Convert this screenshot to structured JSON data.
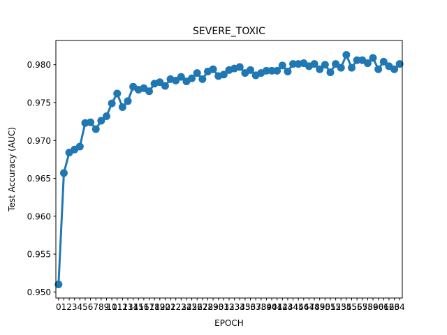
{
  "chart_data": {
    "type": "line",
    "title": "SEVERE_TOXIC",
    "xlabel": "EPOCH",
    "ylabel": "Test Accuracy (AUC)",
    "ylim": [
      0.9492,
      0.9832
    ],
    "yticks": [
      0.95,
      0.955,
      0.96,
      0.965,
      0.97,
      0.975,
      0.98
    ],
    "ytick_labels": [
      "0.950",
      "0.955",
      "0.960",
      "0.965",
      "0.970",
      "0.975",
      "0.980"
    ],
    "grid": false,
    "color": "#1f77b4",
    "series": [
      {
        "x": [
          0,
          1,
          2,
          3,
          4,
          5,
          6,
          7,
          8,
          9,
          10,
          11,
          12,
          13,
          14,
          15,
          16,
          17,
          18,
          19,
          20,
          21,
          22,
          23,
          24,
          25,
          26,
          27,
          28,
          29,
          30,
          31,
          32,
          33,
          34,
          35,
          36,
          37,
          38,
          39,
          40,
          41,
          42,
          43,
          44,
          45,
          46,
          47,
          48,
          49,
          50,
          51,
          52,
          53,
          54,
          55,
          56,
          57,
          58,
          59,
          60,
          61,
          62,
          63,
          64
        ],
        "values": [
          0.951,
          0.9657,
          0.9684,
          0.9688,
          0.9692,
          0.9723,
          0.9724,
          0.9715,
          0.9726,
          0.9732,
          0.9749,
          0.9762,
          0.9744,
          0.9752,
          0.9771,
          0.9767,
          0.9769,
          0.9765,
          0.9775,
          0.9777,
          0.9772,
          0.9781,
          0.9779,
          0.9784,
          0.9778,
          0.9782,
          0.9789,
          0.9781,
          0.9791,
          0.9794,
          0.9785,
          0.9787,
          0.9793,
          0.9795,
          0.9797,
          0.9789,
          0.9793,
          0.9786,
          0.9789,
          0.9792,
          0.9792,
          0.9792,
          0.9799,
          0.9791,
          0.9801,
          0.9801,
          0.9802,
          0.9798,
          0.9801,
          0.9794,
          0.98,
          0.979,
          0.9801,
          0.9796,
          0.9813,
          0.9796,
          0.9806,
          0.9806,
          0.9802,
          0.9809,
          0.9794,
          0.9804,
          0.9798,
          0.9794,
          0.9801
        ]
      }
    ]
  }
}
